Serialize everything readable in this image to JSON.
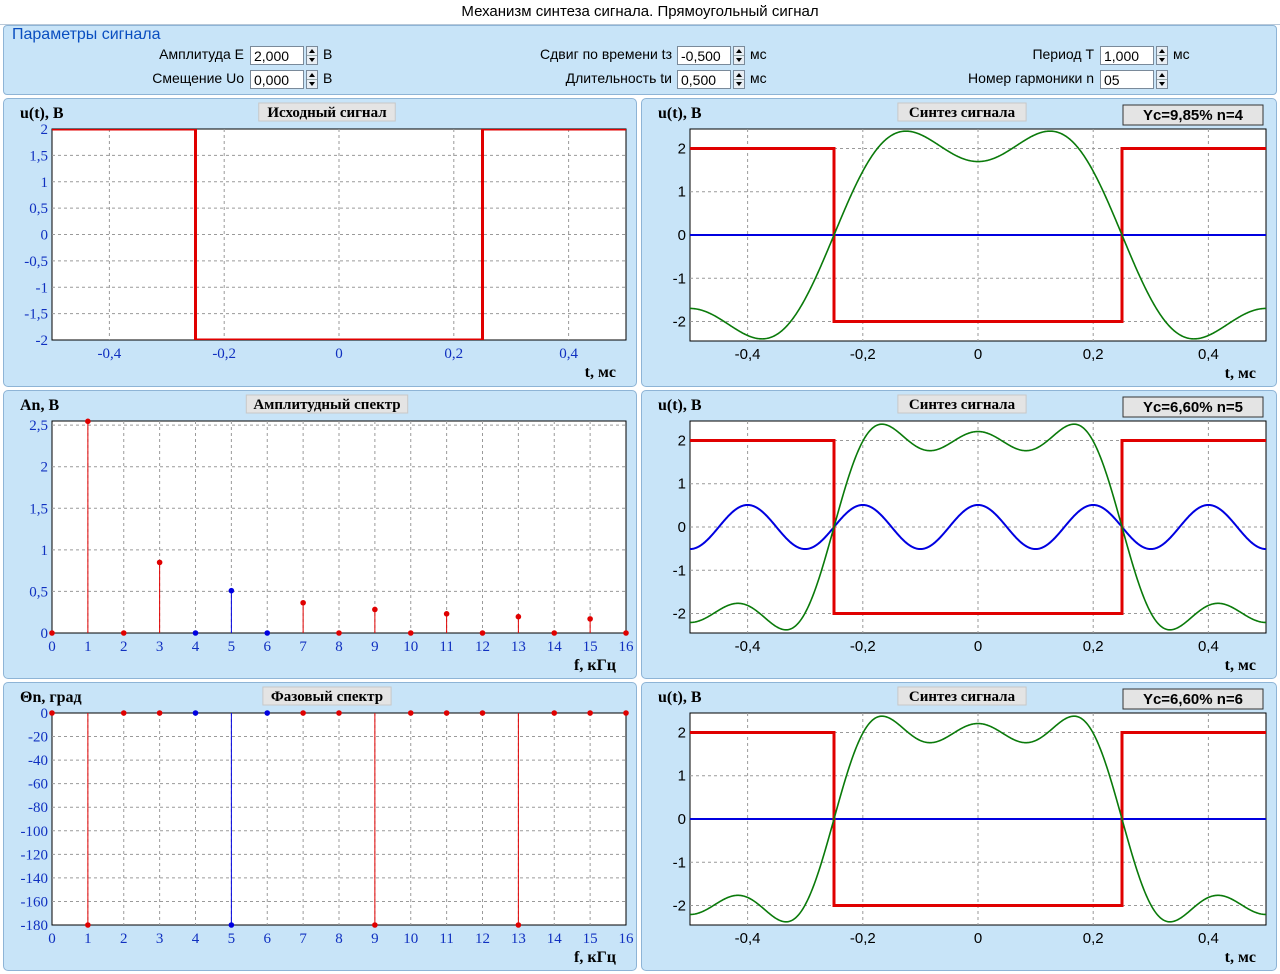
{
  "window": {
    "title": "Механизм синтеза сигнала. Прямоугольный сигнал"
  },
  "params": {
    "title": "Параметры сигнала",
    "amplitude": {
      "label": "Амплитуда  E",
      "value": "2,000",
      "unit": "В"
    },
    "offset": {
      "label": "Смещение  Uo",
      "value": "0,000",
      "unit": "В"
    },
    "time_shift": {
      "label": "Сдвиг по времени  tз",
      "value": "-0,500",
      "unit": "мс"
    },
    "duration": {
      "label": "Длительность  tи",
      "value": "0,500",
      "unit": "мс"
    },
    "period": {
      "label": "Период  T",
      "value": "1,000",
      "unit": "мс"
    },
    "harmonic": {
      "label": "Номер гармоники  n",
      "value": "05"
    }
  },
  "colors": {
    "panel_bg": "#c8e4f8",
    "signal": "#e00000",
    "synth": "#0a7a0a",
    "harmonic": "#0000e0",
    "tick_text": "#1030c0",
    "badge_bg": "#e4e4e4"
  },
  "chart_data": [
    {
      "id": "orig",
      "type": "line",
      "title": "Исходный сигнал",
      "ylabel": "u(t), В",
      "xlabel": "t, мс",
      "xlim": [
        -0.5,
        0.5
      ],
      "ylim": [
        -2,
        2
      ],
      "xticks": [
        -0.4,
        -0.2,
        0,
        0.2,
        0.4
      ],
      "yticks": [
        2,
        1.5,
        1,
        0.5,
        0,
        -0.5,
        -1,
        -1.5,
        -2
      ],
      "xticklabels": [
        "-0,4",
        "-0,2",
        "0",
        "0,2",
        "0,4"
      ],
      "yticklabels": [
        "2",
        "1,5",
        "1",
        "0,5",
        "0",
        "-0,5",
        "-1",
        "-1,5",
        "-2"
      ],
      "tick_color": "#1030c0",
      "series": [
        {
          "color": "#e00000",
          "points": [
            [
              -0.5,
              2
            ],
            [
              -0.25,
              2
            ],
            [
              -0.25,
              -2
            ],
            [
              0.25,
              -2
            ],
            [
              0.25,
              2
            ],
            [
              0.5,
              2
            ]
          ]
        }
      ]
    },
    {
      "id": "amp",
      "type": "stem",
      "title": "Амплитудный спектр",
      "ylabel": "An, В",
      "xlabel": "f, кГц",
      "xlim": [
        0,
        16
      ],
      "ylim": [
        0,
        2.55
      ],
      "xticks": [
        0,
        1,
        2,
        3,
        4,
        5,
        6,
        7,
        8,
        9,
        10,
        11,
        12,
        13,
        14,
        15,
        16
      ],
      "xticklabels": [
        "0",
        "1",
        "2",
        "3",
        "4",
        "5",
        "6",
        "7",
        "8",
        "9",
        "10",
        "11",
        "12",
        "13",
        "14",
        "15",
        "16"
      ],
      "yticks": [
        2.5,
        2,
        1.5,
        1,
        0.5,
        0
      ],
      "yticklabels": [
        "2,5",
        "2",
        "1,5",
        "1",
        "0,5",
        "0"
      ],
      "tick_color": "#1030c0",
      "stems": [
        {
          "x": 0,
          "y": 0,
          "color": "#e00000"
        },
        {
          "x": 1,
          "y": 2.546,
          "color": "#e00000"
        },
        {
          "x": 2,
          "y": 0,
          "color": "#e00000"
        },
        {
          "x": 3,
          "y": 0.849,
          "color": "#e00000"
        },
        {
          "x": 4,
          "y": 0,
          "color": "#0000e0"
        },
        {
          "x": 5,
          "y": 0.509,
          "color": "#0000e0"
        },
        {
          "x": 6,
          "y": 0,
          "color": "#0000e0"
        },
        {
          "x": 7,
          "y": 0.364,
          "color": "#e00000"
        },
        {
          "x": 8,
          "y": 0,
          "color": "#e00000"
        },
        {
          "x": 9,
          "y": 0.283,
          "color": "#e00000"
        },
        {
          "x": 10,
          "y": 0,
          "color": "#e00000"
        },
        {
          "x": 11,
          "y": 0.231,
          "color": "#e00000"
        },
        {
          "x": 12,
          "y": 0,
          "color": "#e00000"
        },
        {
          "x": 13,
          "y": 0.196,
          "color": "#e00000"
        },
        {
          "x": 14,
          "y": 0,
          "color": "#e00000"
        },
        {
          "x": 15,
          "y": 0.17,
          "color": "#e00000"
        },
        {
          "x": 16,
          "y": 0,
          "color": "#e00000"
        }
      ]
    },
    {
      "id": "phase",
      "type": "stem",
      "title": "Фазовый спектр",
      "ylabel": "Θn, град",
      "xlabel": "f, кГц",
      "xlim": [
        0,
        16
      ],
      "ylim": [
        -180,
        0
      ],
      "xticks": [
        0,
        1,
        2,
        3,
        4,
        5,
        6,
        7,
        8,
        9,
        10,
        11,
        12,
        13,
        14,
        15,
        16
      ],
      "xticklabels": [
        "0",
        "1",
        "2",
        "3",
        "4",
        "5",
        "6",
        "7",
        "8",
        "9",
        "10",
        "11",
        "12",
        "13",
        "14",
        "15",
        "16"
      ],
      "yticks": [
        0,
        -20,
        -40,
        -60,
        -80,
        -100,
        -120,
        -140,
        -160,
        -180
      ],
      "yticklabels": [
        "0",
        "-20",
        "-40",
        "-60",
        "-80",
        "-100",
        "-120",
        "-140",
        "-160",
        "-180"
      ],
      "tick_color": "#1030c0",
      "stems": [
        {
          "x": 0,
          "y": 0,
          "color": "#e00000"
        },
        {
          "x": 1,
          "y": -180,
          "color": "#e00000"
        },
        {
          "x": 2,
          "y": 0,
          "color": "#e00000"
        },
        {
          "x": 3,
          "y": 0,
          "color": "#e00000"
        },
        {
          "x": 4,
          "y": 0,
          "color": "#0000e0"
        },
        {
          "x": 5,
          "y": -180,
          "color": "#0000e0"
        },
        {
          "x": 6,
          "y": 0,
          "color": "#0000e0"
        },
        {
          "x": 7,
          "y": 0,
          "color": "#e00000"
        },
        {
          "x": 8,
          "y": 0,
          "color": "#e00000"
        },
        {
          "x": 9,
          "y": -180,
          "color": "#e00000"
        },
        {
          "x": 10,
          "y": 0,
          "color": "#e00000"
        },
        {
          "x": 11,
          "y": 0,
          "color": "#e00000"
        },
        {
          "x": 12,
          "y": 0,
          "color": "#e00000"
        },
        {
          "x": 13,
          "y": -180,
          "color": "#e00000"
        },
        {
          "x": 14,
          "y": 0,
          "color": "#e00000"
        },
        {
          "x": 15,
          "y": 0,
          "color": "#e00000"
        },
        {
          "x": 16,
          "y": 0,
          "color": "#e00000"
        }
      ]
    },
    {
      "id": "syn4",
      "type": "line",
      "title": "Синтез сигнала",
      "ylabel": "u(t), В",
      "xlabel": "t, мс",
      "badge": "Yc=9,85%    n=4",
      "xlim": [
        -0.5,
        0.5
      ],
      "ylim": [
        -2.45,
        2.45
      ],
      "xticks": [
        -0.4,
        -0.2,
        0,
        0.2,
        0.4
      ],
      "xticklabels": [
        "-0,4",
        "-0,2",
        "0",
        "0,2",
        "0,4"
      ],
      "yticks": [
        2,
        1,
        0,
        -1,
        -2
      ],
      "yticklabels": [
        "2",
        "1",
        "0",
        "-1",
        "-2"
      ],
      "tick_color": "#000000",
      "square": {
        "color": "#e00000",
        "amplitude": 2
      },
      "synth": {
        "color": "#0a7a0a",
        "harmonics": [
          1,
          3
        ]
      },
      "harmonic": {
        "color": "#0000e0",
        "n": 4,
        "amplitude": 0
      }
    },
    {
      "id": "syn5",
      "type": "line",
      "title": "Синтез сигнала",
      "ylabel": "u(t), В",
      "xlabel": "t, мс",
      "badge": "Yc=6,60%    n=5",
      "xlim": [
        -0.5,
        0.5
      ],
      "ylim": [
        -2.45,
        2.45
      ],
      "xticks": [
        -0.4,
        -0.2,
        0,
        0.2,
        0.4
      ],
      "xticklabels": [
        "-0,4",
        "-0,2",
        "0",
        "0,2",
        "0,4"
      ],
      "yticks": [
        2,
        1,
        0,
        -1,
        -2
      ],
      "yticklabels": [
        "2",
        "1",
        "0",
        "-1",
        "-2"
      ],
      "tick_color": "#000000",
      "square": {
        "color": "#e00000",
        "amplitude": 2
      },
      "synth": {
        "color": "#0a7a0a",
        "harmonics": [
          1,
          3,
          5
        ]
      },
      "harmonic": {
        "color": "#0000e0",
        "n": 5,
        "amplitude": 0.509
      }
    },
    {
      "id": "syn6",
      "type": "line",
      "title": "Синтез сигнала",
      "ylabel": "u(t), В",
      "xlabel": "t, мс",
      "badge": "Yc=6,60%    n=6",
      "xlim": [
        -0.5,
        0.5
      ],
      "ylim": [
        -2.45,
        2.45
      ],
      "xticks": [
        -0.4,
        -0.2,
        0,
        0.2,
        0.4
      ],
      "xticklabels": [
        "-0,4",
        "-0,2",
        "0",
        "0,2",
        "0,4"
      ],
      "yticks": [
        2,
        1,
        0,
        -1,
        -2
      ],
      "yticklabels": [
        "2",
        "1",
        "0",
        "-1",
        "-2"
      ],
      "tick_color": "#000000",
      "square": {
        "color": "#e00000",
        "amplitude": 2
      },
      "synth": {
        "color": "#0a7a0a",
        "harmonics": [
          1,
          3,
          5
        ]
      },
      "harmonic": {
        "color": "#0000e0",
        "n": 6,
        "amplitude": 0
      }
    }
  ]
}
